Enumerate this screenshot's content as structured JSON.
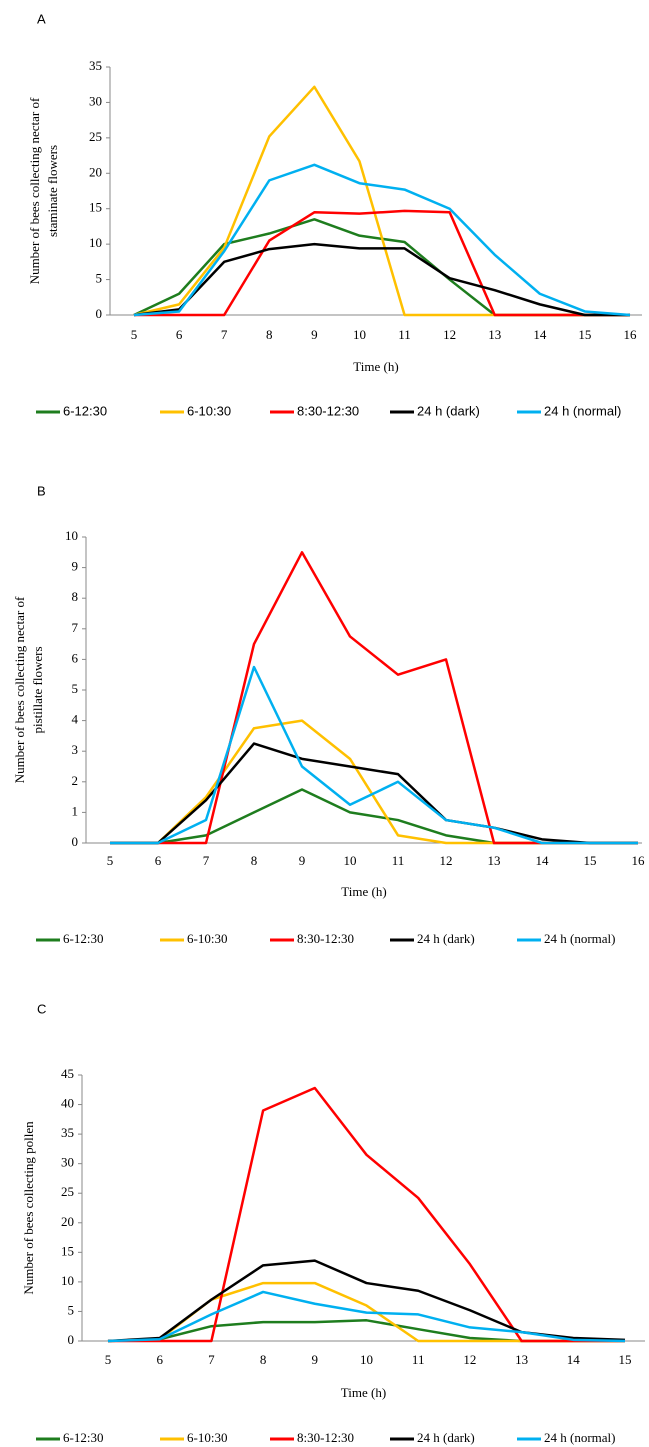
{
  "chart_data": [
    {
      "type": "line",
      "title": "A",
      "ylabel": [
        "Number of bees collecting nectar of",
        "staminate flowers"
      ],
      "xlabel": "Time (h)",
      "categories": [
        5,
        6,
        7,
        8,
        9,
        10,
        11,
        12,
        13,
        14,
        15,
        16
      ],
      "ylim": [
        0,
        35
      ],
      "yticks": [
        0,
        5,
        10,
        15,
        20,
        25,
        30,
        35
      ],
      "grid": false,
      "series": [
        {
          "name": "6-12:30",
          "color": "#1e7d1e",
          "values": [
            0,
            3,
            10,
            11.5,
            13.5,
            11.2,
            10.3,
            5,
            0,
            0,
            0,
            0
          ]
        },
        {
          "name": "6-10:30",
          "color": "#ffc000",
          "values": [
            0,
            1.5,
            9.5,
            25.2,
            32.2,
            21.7,
            0,
            0,
            0,
            0,
            0,
            0
          ]
        },
        {
          "name": "8:30-12:30",
          "color": "#ff0000",
          "values": [
            0,
            0,
            0,
            10.5,
            14.5,
            14.3,
            14.7,
            14.5,
            0,
            0,
            0,
            0
          ]
        },
        {
          "name": "24 h (dark)",
          "color": "#000000",
          "values": [
            0,
            0.8,
            7.5,
            9.3,
            10,
            9.4,
            9.4,
            5.2,
            3.5,
            1.5,
            0,
            0
          ]
        },
        {
          "name": "24 h (normal)",
          "color": "#00b0f0",
          "values": [
            0,
            0.5,
            9,
            19,
            21.2,
            18.6,
            17.7,
            15,
            8.5,
            3,
            0.5,
            0
          ]
        }
      ]
    },
    {
      "type": "line",
      "title": "B",
      "ylabel": [
        "Number of bees collecting nectar of",
        "pistillate flowers"
      ],
      "xlabel": "Time (h)",
      "categories": [
        5,
        6,
        7,
        8,
        9,
        10,
        11,
        12,
        13,
        14,
        15,
        16
      ],
      "ylim": [
        0,
        10
      ],
      "yticks": [
        0,
        1,
        2,
        3,
        4,
        5,
        6,
        7,
        8,
        9,
        10
      ],
      "grid": false,
      "series": [
        {
          "name": "6-12:30",
          "color": "#1e7d1e",
          "values": [
            0,
            0,
            0.25,
            1,
            1.75,
            1,
            0.75,
            0.25,
            0,
            0,
            0,
            0
          ]
        },
        {
          "name": "6-10:30",
          "color": "#ffc000",
          "values": [
            0,
            0,
            1.5,
            3.75,
            4,
            2.75,
            0.25,
            0,
            0,
            0,
            0,
            0
          ]
        },
        {
          "name": "8:30-12:30",
          "color": "#ff0000",
          "values": [
            0,
            0,
            0,
            6.5,
            9.5,
            6.75,
            5.5,
            6,
            0,
            0,
            0,
            0
          ]
        },
        {
          "name": "24 h (dark)",
          "color": "#000000",
          "values": [
            0,
            0,
            1.4,
            3.25,
            2.75,
            2.5,
            2.25,
            0.75,
            0.5,
            0.12,
            0,
            0
          ]
        },
        {
          "name": "24 h (normal)",
          "color": "#00b0f0",
          "values": [
            0,
            0,
            0.75,
            5.75,
            2.5,
            1.25,
            2,
            0.75,
            0.5,
            0,
            0,
            0
          ]
        }
      ]
    },
    {
      "type": "line",
      "title": "C",
      "ylabel": [
        "Number of bees collecting pollen"
      ],
      "xlabel": "Time (h)",
      "categories": [
        5,
        6,
        7,
        8,
        9,
        10,
        11,
        12,
        13,
        14,
        15
      ],
      "ylim": [
        0,
        45
      ],
      "yticks": [
        0,
        5,
        10,
        15,
        20,
        25,
        30,
        35,
        40,
        45
      ],
      "grid": false,
      "series": [
        {
          "name": "6-12:30",
          "color": "#1e7d1e",
          "values": [
            0,
            0.3,
            2.5,
            3.2,
            3.2,
            3.5,
            2,
            0.5,
            0,
            0,
            0
          ]
        },
        {
          "name": "6-10:30",
          "color": "#ffc000",
          "values": [
            0,
            0.3,
            7,
            9.8,
            9.8,
            6,
            0,
            0,
            0,
            0,
            0
          ]
        },
        {
          "name": "8:30-12:30",
          "color": "#ff0000",
          "values": [
            0,
            0,
            0,
            39,
            42.8,
            31.5,
            24.2,
            13,
            0,
            0,
            0
          ]
        },
        {
          "name": "24 h (dark)",
          "color": "#000000",
          "values": [
            0,
            0.5,
            7,
            12.8,
            13.6,
            9.8,
            8.5,
            5.2,
            1.5,
            0.5,
            0.2
          ]
        },
        {
          "name": "24 h (normal)",
          "color": "#00b0f0",
          "values": [
            0,
            0.3,
            4.5,
            8.3,
            6.3,
            4.8,
            4.5,
            2.3,
            1.5,
            0.2,
            0
          ]
        }
      ]
    }
  ]
}
